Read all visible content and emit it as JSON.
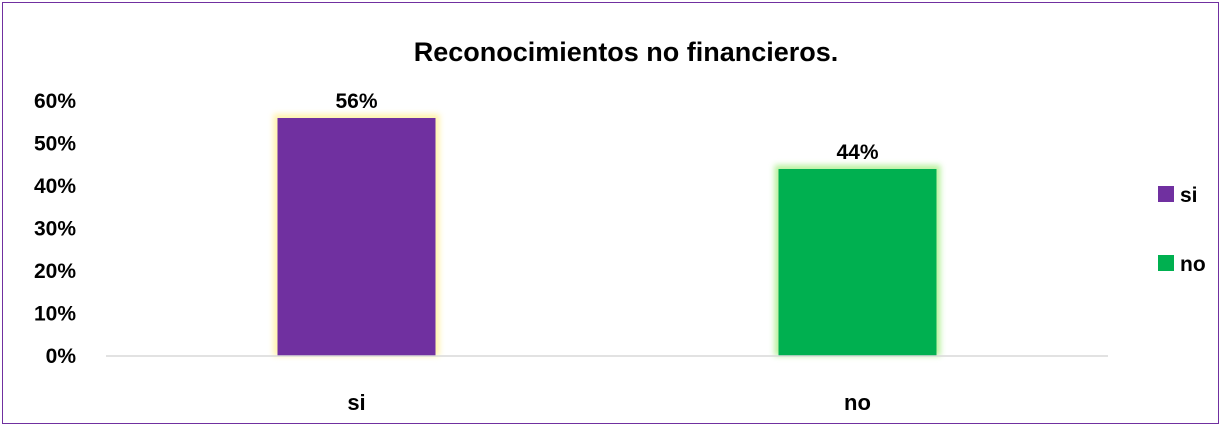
{
  "chart_data": {
    "type": "bar",
    "title": "Reconocimientos no financieros.",
    "categories": [
      "si",
      "no"
    ],
    "series": [
      {
        "name": "si",
        "values": [
          0.56,
          null
        ],
        "color": "#7030a0",
        "glow": "#fff2a8"
      },
      {
        "name": "no",
        "values": [
          null,
          0.44
        ],
        "color": "#00b050",
        "glow": "#b6f09a"
      }
    ],
    "data_labels": [
      "56%",
      "44%"
    ],
    "ylim": [
      0,
      0.6
    ],
    "yticks": [
      0,
      0.1,
      0.2,
      0.3,
      0.4,
      0.5,
      0.6
    ],
    "ytick_labels": [
      "0%",
      "10%",
      "20%",
      "30%",
      "40%",
      "50%",
      "60%"
    ],
    "grid": false,
    "legend": {
      "position": "right",
      "entries": [
        "si",
        "no"
      ]
    },
    "colors": {
      "border": "#7030a0",
      "axis": "#d9d9d9"
    }
  }
}
